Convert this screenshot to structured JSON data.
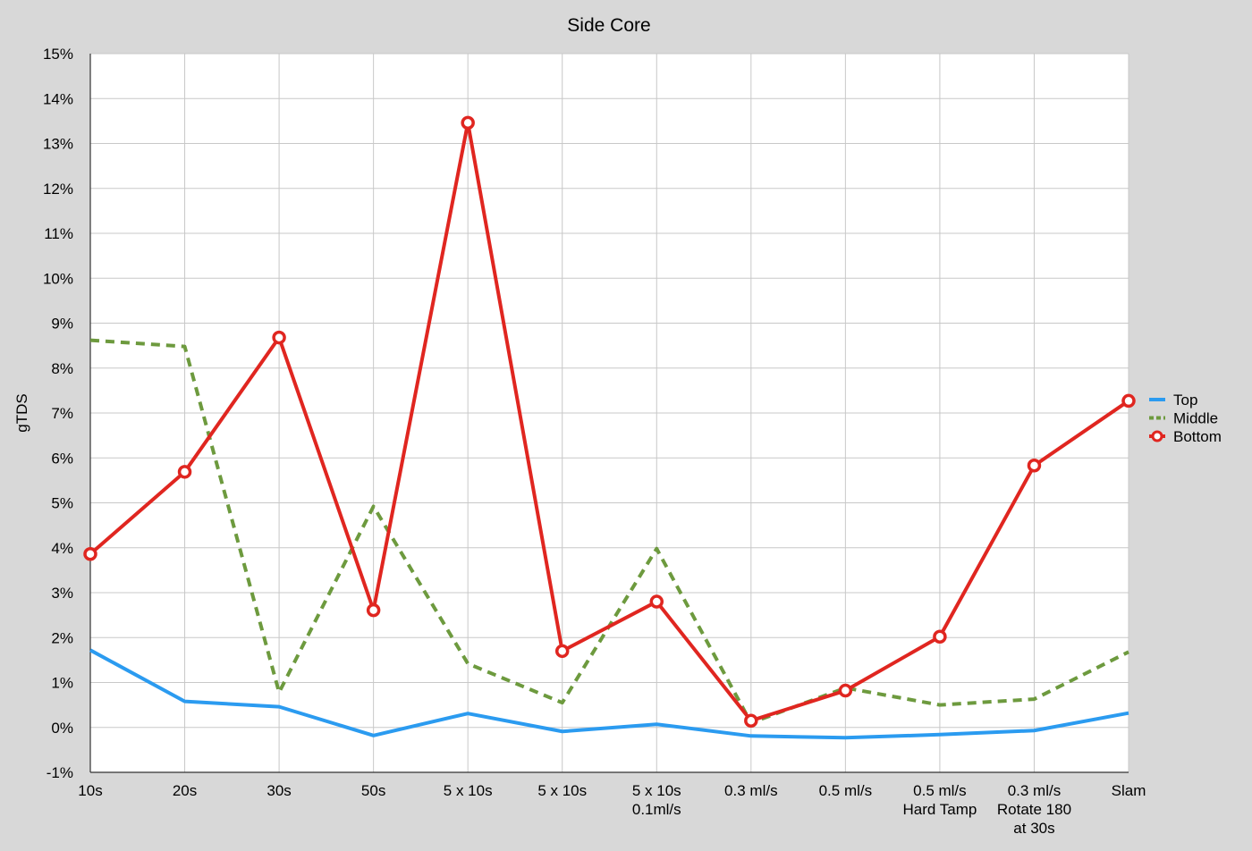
{
  "chart_data": {
    "type": "line",
    "title": "Side Core",
    "xlabel": "",
    "ylabel": "gTDS",
    "ylim": [
      -1,
      15
    ],
    "y_ticks": [
      -1,
      0,
      1,
      2,
      3,
      4,
      5,
      6,
      7,
      8,
      9,
      10,
      11,
      12,
      13,
      14,
      15
    ],
    "y_tick_labels": [
      "-1%",
      "0%",
      "1%",
      "2%",
      "3%",
      "4%",
      "5%",
      "6%",
      "7%",
      "8%",
      "9%",
      "10%",
      "11%",
      "12%",
      "13%",
      "14%",
      "15%"
    ],
    "categories": [
      "10s",
      "20s",
      "30s",
      "50s",
      "5 x 10s",
      "5 x 10s",
      "5 x 10s\n0.1ml/s",
      "0.3 ml/s",
      "0.5 ml/s",
      "0.5 ml/s\nHard Tamp",
      "0.3 ml/s\nRotate 180\nat 30s",
      "Slam"
    ],
    "grid": true,
    "legend_position": "right",
    "series": [
      {
        "name": "Top",
        "color": "#2b9bf0",
        "style": "solid",
        "marker": "none",
        "values": [
          1.72,
          0.58,
          0.46,
          -0.18,
          0.31,
          -0.09,
          0.07,
          -0.19,
          -0.23,
          -0.16,
          -0.07,
          0.32
        ]
      },
      {
        "name": "Middle",
        "color": "#6d9a3e",
        "style": "dashed",
        "marker": "none",
        "values": [
          8.62,
          8.48,
          0.78,
          4.92,
          1.42,
          0.55,
          3.98,
          0.1,
          0.88,
          0.5,
          0.63,
          1.68
        ]
      },
      {
        "name": "Bottom",
        "color": "#e02620",
        "style": "solid",
        "marker": "circle",
        "values": [
          3.86,
          5.69,
          8.68,
          2.61,
          13.46,
          1.7,
          2.8,
          0.15,
          0.82,
          2.02,
          5.83,
          7.27
        ]
      }
    ]
  }
}
